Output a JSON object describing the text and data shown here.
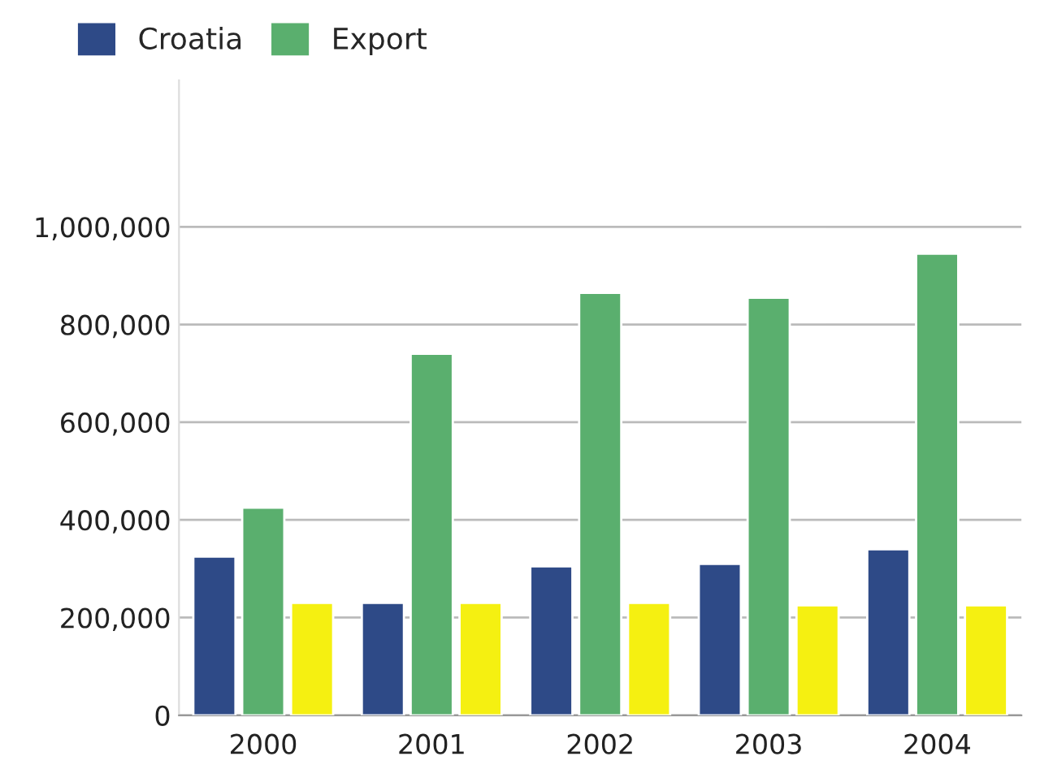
{
  "chart_data": {
    "type": "bar",
    "categories": [
      "2000",
      "2001",
      "2002",
      "2003",
      "2004"
    ],
    "series": [
      {
        "name": "Croatia",
        "color": "#2e4a87",
        "values": [
          325000,
          230000,
          305000,
          310000,
          340000
        ]
      },
      {
        "name": "Export",
        "color": "#5aaf6e",
        "values": [
          425000,
          740000,
          865000,
          855000,
          945000
        ]
      },
      {
        "color": "#f5f011",
        "values": [
          230000,
          230000,
          230000,
          225000,
          225000
        ]
      }
    ],
    "ylim": [
      0,
      1300000
    ],
    "yticks": [
      {
        "value": 0,
        "label": "0"
      },
      {
        "value": 200000,
        "label": "200,000"
      },
      {
        "value": 400000,
        "label": "400,000"
      },
      {
        "value": 600000,
        "label": "600,000"
      },
      {
        "value": 800000,
        "label": "800,000"
      },
      {
        "value": 1000000,
        "label": "1,000,000"
      }
    ],
    "grid": "y",
    "legend": "top left"
  }
}
